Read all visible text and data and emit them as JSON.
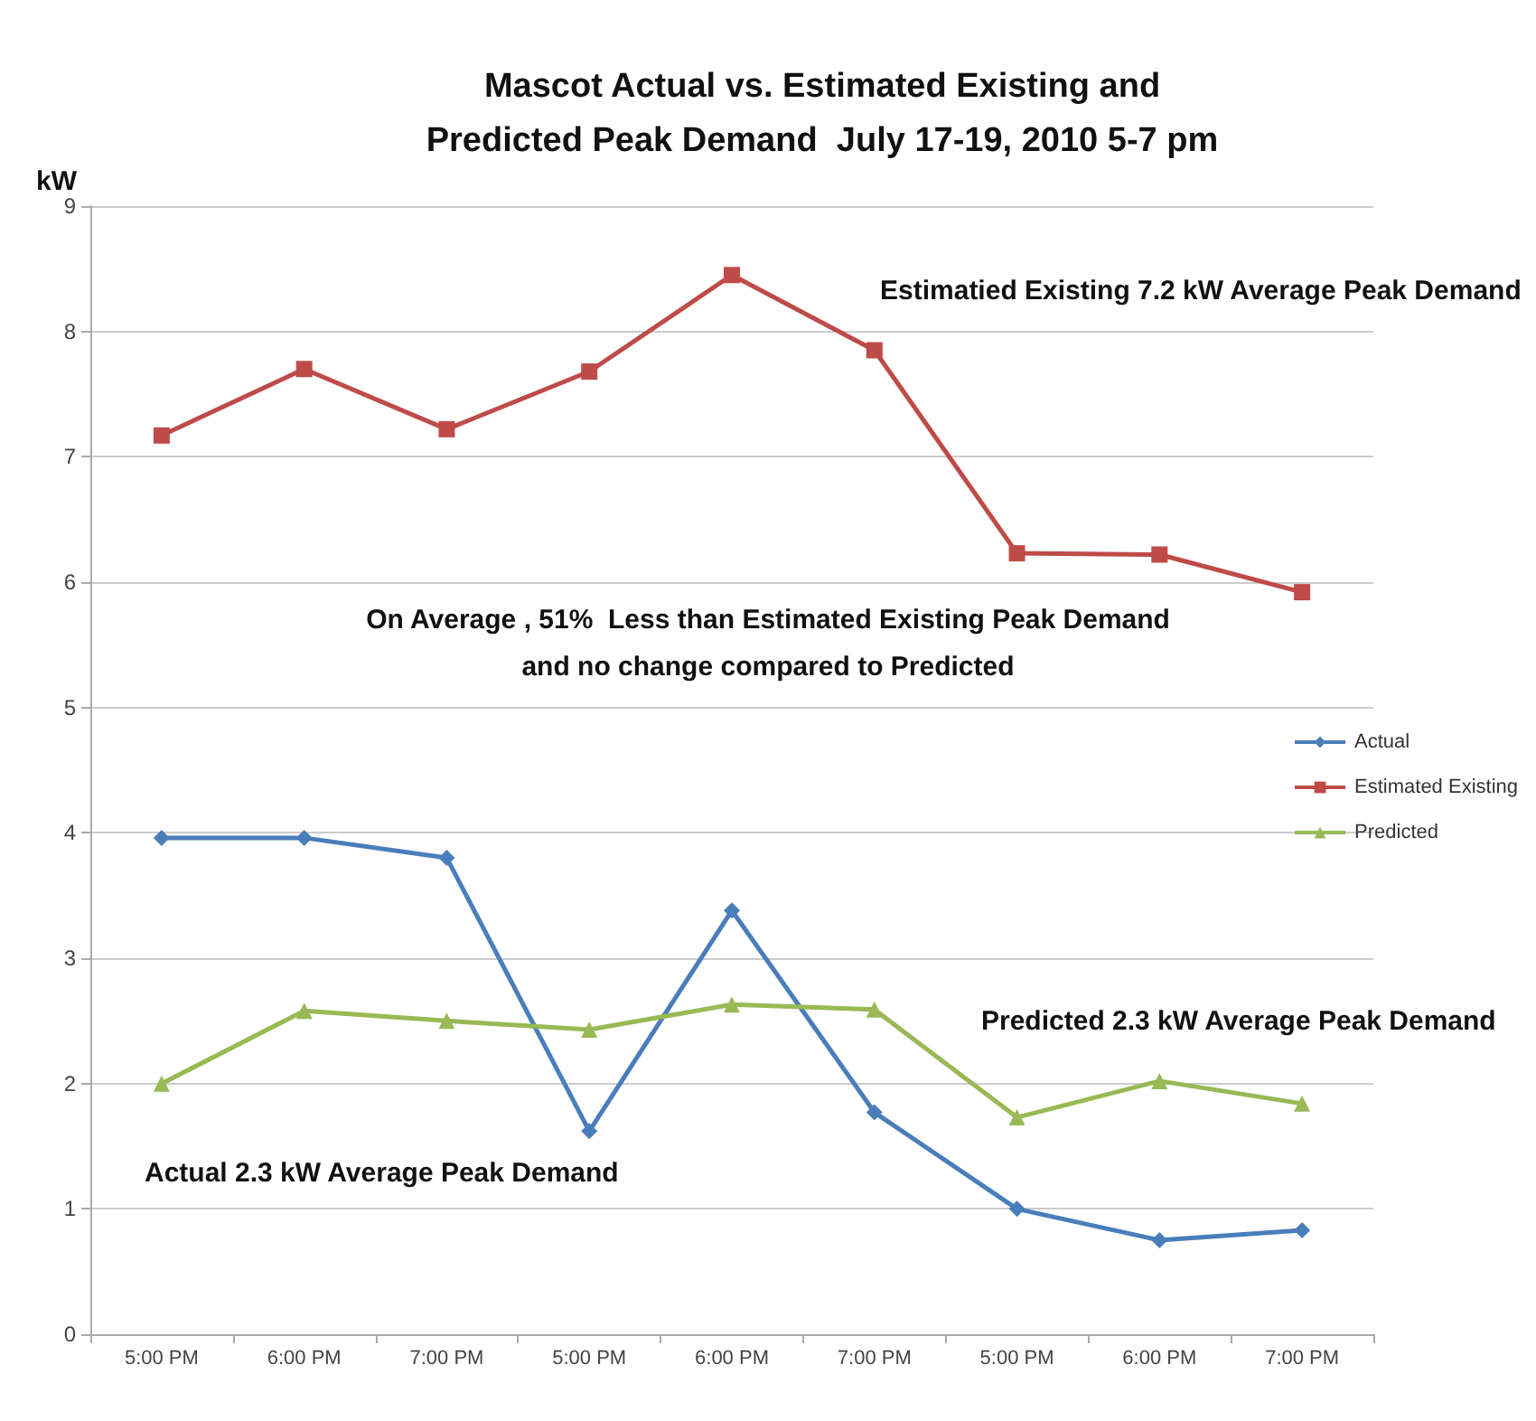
{
  "chart_data": {
    "type": "line",
    "title": "Mascot Actual vs. Estimated Existing and\nPredicted Peak Demand  July 17-19, 2010 5-7 pm",
    "ylabel": "kW",
    "categories": [
      "5:00 PM",
      "6:00 PM",
      "7:00 PM",
      "5:00 PM",
      "6:00 PM",
      "7:00 PM",
      "5:00 PM",
      "6:00 PM",
      "7:00 PM"
    ],
    "series": [
      {
        "name": "Actual",
        "color": "#4a7ebb",
        "marker": "diamond",
        "values": [
          3.96,
          3.96,
          3.8,
          1.62,
          3.38,
          1.77,
          1.0,
          0.75,
          0.83
        ]
      },
      {
        "name": "Estimated Existing",
        "color": "#be4b48",
        "marker": "square",
        "values": [
          7.17,
          7.7,
          7.22,
          7.68,
          8.45,
          7.85,
          6.23,
          6.22,
          5.92
        ]
      },
      {
        "name": "Predicted",
        "color": "#98b954",
        "marker": "triangle",
        "values": [
          2.0,
          2.58,
          2.5,
          2.43,
          2.63,
          2.59,
          1.73,
          2.02,
          1.84
        ]
      }
    ],
    "ylim": [
      0,
      9
    ],
    "yticks": [
      0,
      1,
      2,
      3,
      4,
      5,
      6,
      7,
      8,
      9
    ],
    "grid": "y",
    "legend": "right",
    "line_style": "solid",
    "annotations": [
      "Estimatied Existing 7.2 kW Average Peak Demand",
      "On Average , 51%  Less than Estimated Existing Peak Demand\nand no change compared to Predicted",
      "Predicted 2.3 kW Average Peak Demand",
      "Actual 2.3 kW Average Peak Demand"
    ]
  }
}
